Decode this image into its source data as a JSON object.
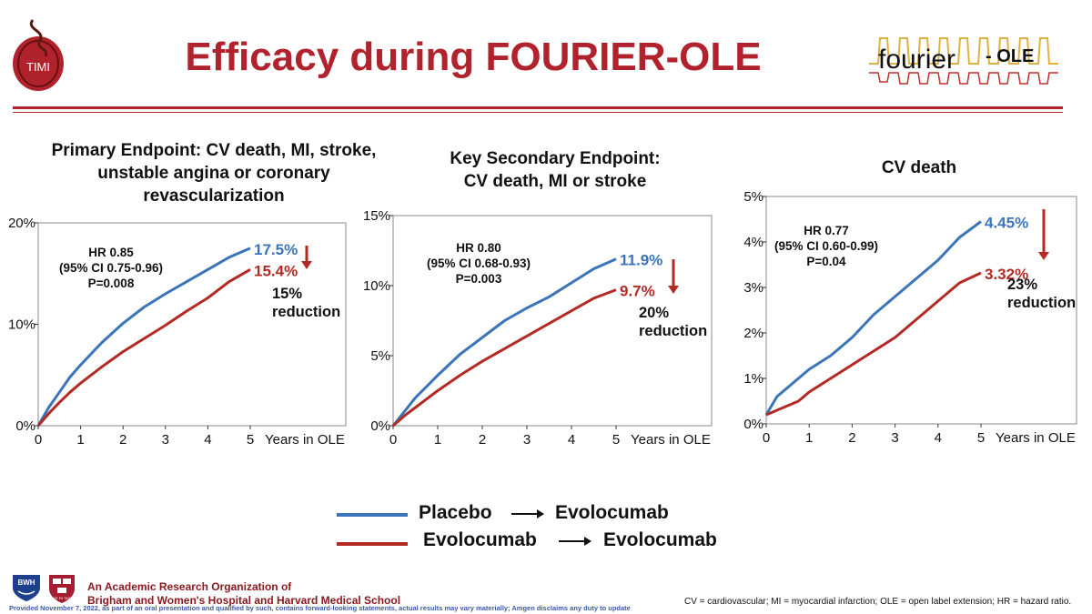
{
  "header": {
    "title": "Efficacy during FOURIER-OLE",
    "logo_left_text": "TIMI",
    "logo_right_text_main": "fourier",
    "logo_right_text_suffix": "- OLE"
  },
  "colors": {
    "placebo": "#3b74b9",
    "evolocumab": "#b32a25",
    "title_red": "#b0222c"
  },
  "legend": {
    "row1_from": "Placebo",
    "row1_to": "Evolocumab",
    "row2_from": "Evolocumab",
    "row2_to": "Evolocumab"
  },
  "footer": {
    "org_line1": "An Academic Research Organization of",
    "org_line2": "Brigham and Women's Hospital and Harvard Medical School",
    "disclaimer": "Provided November 7, 2022, as part of an oral presentation and qualified by such, contains forward-looking statements, actual results may vary materially; Amgen disclaims any duty to update",
    "abbreviations": "CV = cardiovascular; MI = myocardial infarction; OLE = open label extension; HR = hazard ratio.",
    "logo_bwh": "BWH",
    "logo_harvard": "VE RI TAS"
  },
  "chart_data": [
    {
      "type": "line",
      "title_lines": [
        "Primary Endpoint: CV death, MI, stroke,",
        "unstable angina or coronary",
        "revascularization"
      ],
      "xlabel": "Years in OLE",
      "x_ticks": [
        "0",
        "1",
        "2",
        "3",
        "4",
        "5"
      ],
      "y_ticks": [
        "0%",
        "10%",
        "20%"
      ],
      "xlim": [
        0,
        5
      ],
      "ylim": [
        0,
        20
      ],
      "hr_lines": [
        "HR 0.85",
        "(95% CI 0.75-0.96)",
        "P=0.008"
      ],
      "reduction_lines": [
        "15%",
        "reduction"
      ],
      "series": [
        {
          "name": "Placebo → Evolocumab",
          "end_label": "17.5%",
          "x": [
            0,
            0.25,
            0.5,
            0.75,
            1,
            1.5,
            2,
            2.5,
            3,
            3.5,
            4,
            4.5,
            5
          ],
          "y": [
            0,
            1.8,
            3.3,
            4.8,
            6.0,
            8.2,
            10.1,
            11.7,
            13.0,
            14.2,
            15.4,
            16.6,
            17.5
          ]
        },
        {
          "name": "Evolocumab → Evolocumab",
          "end_label": "15.4%",
          "x": [
            0,
            0.25,
            0.5,
            0.75,
            1,
            1.5,
            2,
            2.5,
            3,
            3.5,
            4,
            4.5,
            5
          ],
          "y": [
            0,
            1.2,
            2.3,
            3.3,
            4.2,
            5.8,
            7.3,
            8.6,
            9.9,
            11.3,
            12.6,
            14.2,
            15.4
          ]
        }
      ]
    },
    {
      "type": "line",
      "title_lines": [
        "Key Secondary Endpoint:",
        "CV death, MI or stroke"
      ],
      "xlabel": "Years in OLE",
      "x_ticks": [
        "0",
        "1",
        "2",
        "3",
        "4",
        "5"
      ],
      "y_ticks": [
        "0%",
        "5%",
        "10%",
        "15%"
      ],
      "xlim": [
        0,
        5
      ],
      "ylim": [
        0,
        15
      ],
      "hr_lines": [
        "HR 0.80",
        "(95% CI 0.68-0.93)",
        "P=0.003"
      ],
      "reduction_lines": [
        "20%",
        "reduction"
      ],
      "series": [
        {
          "name": "Placebo → Evolocumab",
          "end_label": "11.9%",
          "x": [
            0,
            0.25,
            0.5,
            0.75,
            1,
            1.5,
            2,
            2.5,
            3,
            3.5,
            4,
            4.5,
            5
          ],
          "y": [
            0,
            1.0,
            2.0,
            2.8,
            3.6,
            5.1,
            6.3,
            7.5,
            8.4,
            9.2,
            10.2,
            11.2,
            11.9
          ]
        },
        {
          "name": "Evolocumab → Evolocumab",
          "end_label": "9.7%",
          "x": [
            0,
            0.25,
            0.5,
            0.75,
            1,
            1.5,
            2,
            2.5,
            3,
            3.5,
            4,
            4.5,
            5
          ],
          "y": [
            0,
            0.7,
            1.3,
            1.9,
            2.5,
            3.6,
            4.6,
            5.5,
            6.4,
            7.3,
            8.2,
            9.1,
            9.7
          ]
        }
      ]
    },
    {
      "type": "line",
      "title_lines": [
        "CV death"
      ],
      "xlabel": "Years in OLE",
      "x_ticks": [
        "0",
        "1",
        "2",
        "3",
        "4",
        "5"
      ],
      "y_ticks": [
        "0%",
        "1%",
        "2%",
        "3%",
        "4%",
        "5%"
      ],
      "xlim": [
        0,
        5
      ],
      "ylim": [
        0,
        5
      ],
      "hr_lines": [
        "HR 0.77",
        "(95% CI 0.60-0.99)",
        "P=0.04"
      ],
      "reduction_lines": [
        "23%",
        "reduction"
      ],
      "series": [
        {
          "name": "Placebo → Evolocumab",
          "end_label": "4.45%",
          "x": [
            0,
            0.25,
            0.5,
            0.75,
            1,
            1.5,
            2,
            2.5,
            3,
            3.5,
            4,
            4.5,
            5
          ],
          "y": [
            0.2,
            0.6,
            0.8,
            1.0,
            1.2,
            1.5,
            1.9,
            2.4,
            2.8,
            3.2,
            3.6,
            4.1,
            4.45
          ]
        },
        {
          "name": "Evolocumab → Evolocumab",
          "end_label": "3.32%",
          "x": [
            0,
            0.25,
            0.5,
            0.75,
            1,
            1.5,
            2,
            2.5,
            3,
            3.5,
            4,
            4.5,
            5
          ],
          "y": [
            0.2,
            0.3,
            0.4,
            0.5,
            0.7,
            1.0,
            1.3,
            1.6,
            1.9,
            2.3,
            2.7,
            3.1,
            3.32
          ]
        }
      ]
    }
  ]
}
